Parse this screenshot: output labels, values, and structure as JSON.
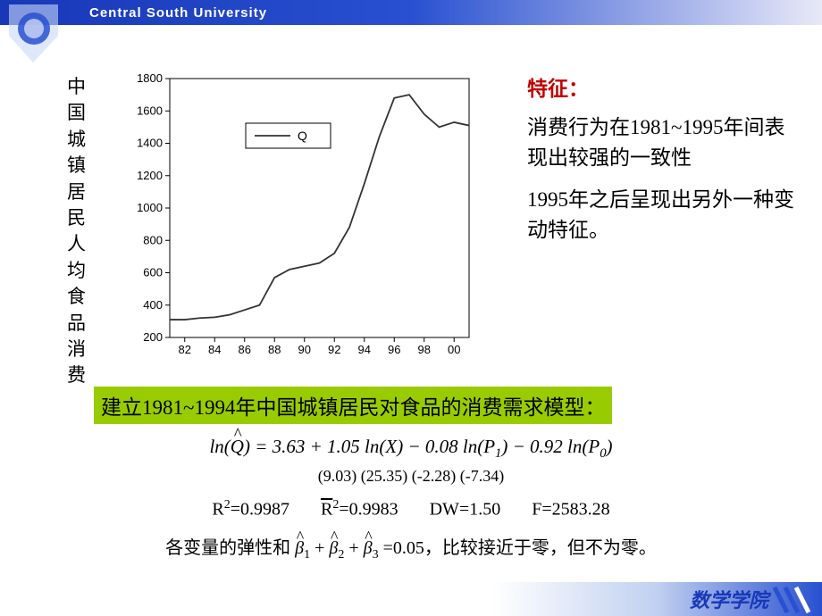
{
  "header": {
    "university": "Central South University"
  },
  "logo": {
    "color": "#2850d0"
  },
  "vertical_title": "中国城镇居民人均食品消费",
  "chart": {
    "type": "line",
    "legend_label": "Q",
    "ylim": [
      200,
      1800
    ],
    "ytick_step": 200,
    "x_labels": [
      "82",
      "84",
      "86",
      "88",
      "90",
      "92",
      "94",
      "96",
      "98",
      "00"
    ],
    "x_range": [
      81,
      101
    ],
    "data_x": [
      81,
      82,
      83,
      84,
      85,
      86,
      87,
      88,
      89,
      90,
      91,
      92,
      93,
      94,
      95,
      96,
      97,
      98,
      99,
      100,
      101
    ],
    "data_y": [
      310,
      310,
      320,
      325,
      340,
      370,
      400,
      570,
      620,
      640,
      660,
      720,
      880,
      1150,
      1440,
      1680,
      1700,
      1580,
      1500,
      1530,
      1510
    ],
    "axis_color": "#000000",
    "line_color": "#333333",
    "legend_border": "#000000",
    "background": "#ffffff",
    "label_fontsize": 13
  },
  "right_panel": {
    "heading": "特征：",
    "para1": "消费行为在1981~1995年间表现出较强的一致性",
    "para2": "1995年之后呈现出另外一种变动特征。"
  },
  "model_heading": "建立1981~1994年中国城镇居民对食品的消费需求模型：",
  "equation": {
    "main": "ln(Q̂) = 3.63 + 1.05 ln(X) − 0.08 ln(P₁) − 0.92 ln(P₀)",
    "coef0": "3.63",
    "coef1": "1.05",
    "coef2": "0.08",
    "coef3": "0.92",
    "tstats": "(9.03)  (25.35)        (-2.28)        (-7.34)",
    "r2_label": "R²=",
    "r2_val": "0.9987",
    "r2adj_label": "R̄²=",
    "r2adj_val": "0.9983",
    "dw_label": "DW=",
    "dw_val": "1.50",
    "f_label": "F=",
    "f_val": "2583.28",
    "note_prefix": "各变量的弹性和 ",
    "beta_sum": "β̂₁ + β̂₂ + β̂₃",
    "note_eq": " =0.05，",
    "note_suffix": "比较接近于零，但不为零。"
  },
  "footer": {
    "text": "数学学院",
    "accent_color": "#2850d0"
  }
}
